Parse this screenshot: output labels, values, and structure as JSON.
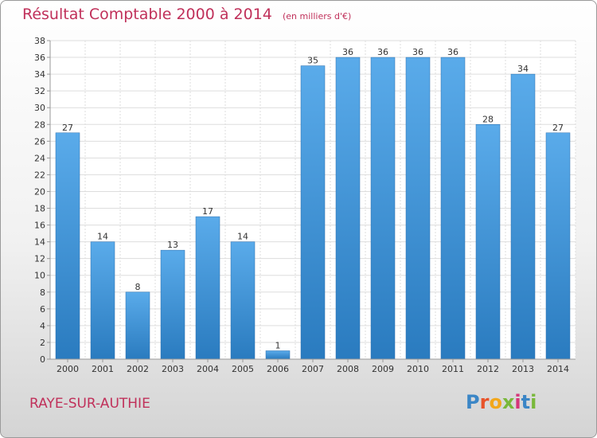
{
  "header": {
    "title": "Résultat Comptable 2000 à 2014",
    "subtitle": "(en milliers d'€)"
  },
  "footer": {
    "commune": "RAYE-SUR-AUTHIE",
    "logo_text": "Proxiti"
  },
  "colors": {
    "bar_light": "#5aabea",
    "bar_dark": "#2a7bbf",
    "title": "#c0305a",
    "grid": "#dddddd"
  },
  "chart_data": {
    "type": "bar",
    "title": "Résultat Comptable 2000 à 2014",
    "subtitle": "(en milliers d'€)",
    "categories": [
      "2000",
      "2001",
      "2002",
      "2003",
      "2004",
      "2005",
      "2006",
      "2007",
      "2008",
      "2009",
      "2010",
      "2011",
      "2012",
      "2013",
      "2014"
    ],
    "values": [
      27,
      14,
      8,
      13,
      17,
      14,
      1,
      35,
      36,
      36,
      36,
      36,
      28,
      34,
      27
    ],
    "ylim": [
      0,
      38
    ],
    "yticks": [
      0,
      2,
      4,
      6,
      8,
      10,
      12,
      14,
      16,
      18,
      20,
      22,
      24,
      26,
      28,
      30,
      32,
      34,
      36,
      38
    ],
    "grid": true,
    "xlabel": "",
    "ylabel": ""
  }
}
